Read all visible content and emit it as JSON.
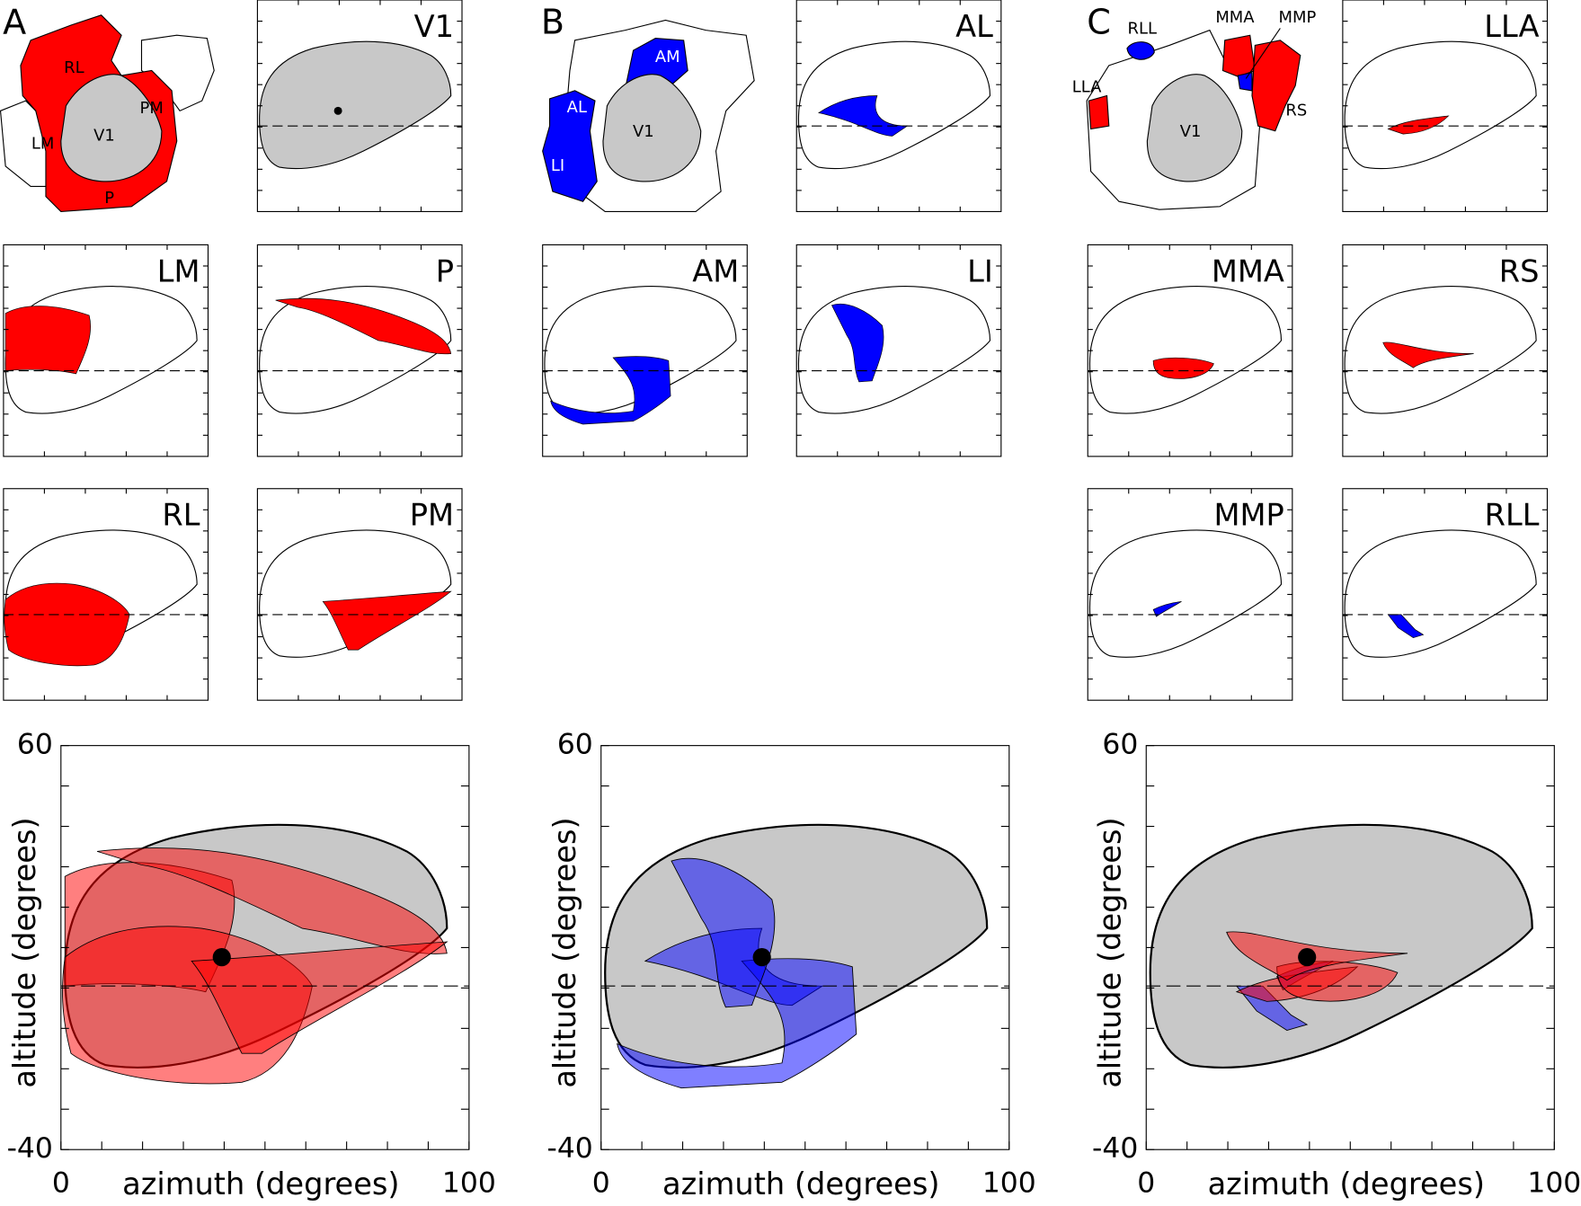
{
  "panel_letters": [
    "A",
    "B",
    "C"
  ],
  "maps": [
    [
      "RL",
      "PM",
      "LM",
      "V1",
      "P"
    ],
    [
      "AM",
      "AL",
      "V1",
      "LI"
    ],
    [
      "RLL",
      "MMA",
      "MMP",
      "LLA",
      "V1",
      "RS"
    ]
  ],
  "insets": [
    "V1",
    "AL",
    "LLA",
    "LM",
    "P",
    "AM",
    "LI",
    "MMA",
    "RS",
    "RL",
    "PM",
    "MMP",
    "RLL"
  ],
  "chart_data": [
    {
      "type": "area",
      "xlim": [
        0,
        100
      ],
      "ylim": [
        -40,
        60
      ],
      "xticks": [
        0,
        100
      ],
      "yticks": [
        -40,
        60
      ],
      "xlabel": "azimuth (degrees)",
      "ylabel": "altitude (degrees)"
    },
    {
      "type": "area",
      "xlim": [
        0,
        100
      ],
      "ylim": [
        -40,
        60
      ],
      "xticks": [
        0,
        100
      ],
      "yticks": [
        -40,
        60
      ],
      "xlabel": "azimuth (degrees)",
      "ylabel": "altitude (degrees)"
    },
    {
      "type": "area",
      "xlim": [
        0,
        100
      ],
      "ylim": [
        -40,
        60
      ],
      "xticks": [
        0,
        100
      ],
      "yticks": [
        -40,
        60
      ],
      "xlabel": "azimuth (degrees)",
      "ylabel": "altitude (degrees)"
    }
  ]
}
